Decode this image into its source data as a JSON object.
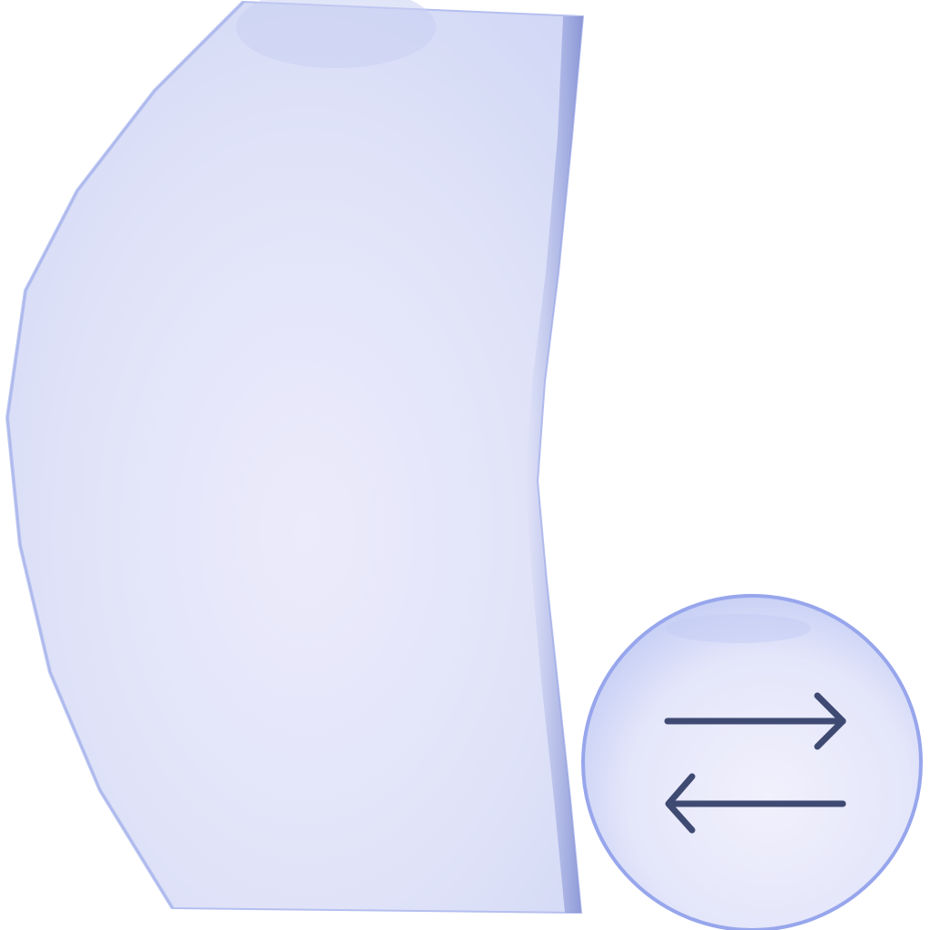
{
  "colors": {
    "background": "#ffffff",
    "panel_fill": "#dfe2f8",
    "panel_edge": "#a9b4ec",
    "panel_shadow": "#8e9ad6",
    "button_fill": "#e6e8fa",
    "button_edge": "#97a6ec",
    "arrow": "#3f4a72"
  },
  "icons": {
    "panel": "sheet-panel",
    "swap": "swap-arrows-icon"
  }
}
